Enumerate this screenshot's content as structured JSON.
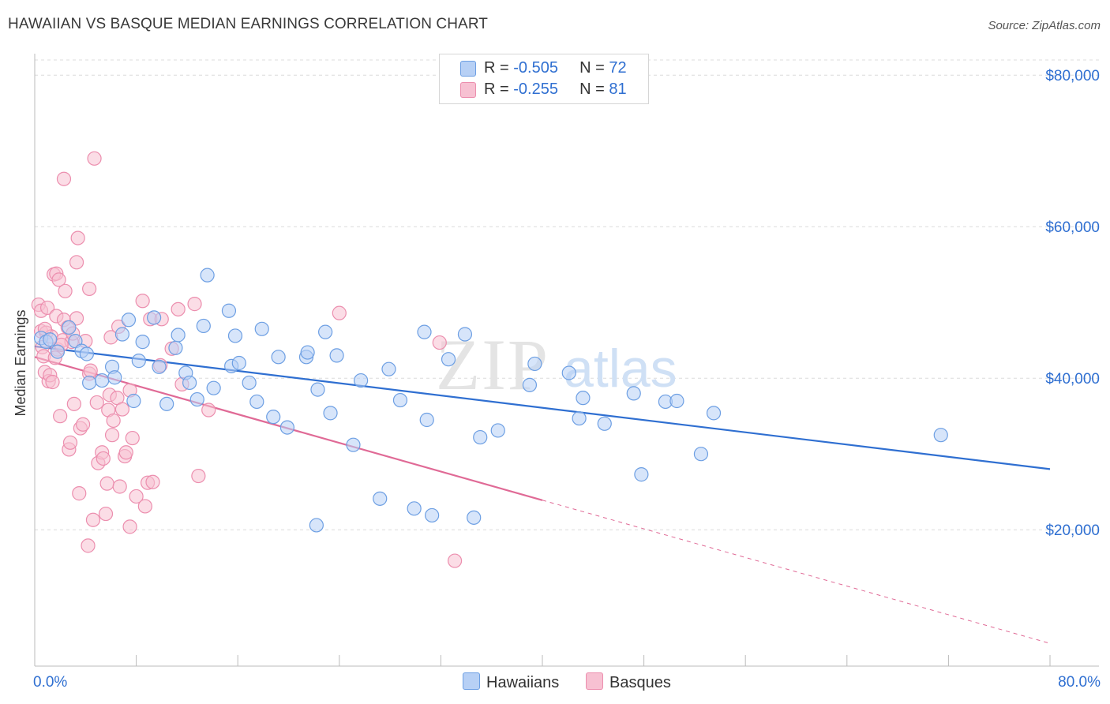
{
  "title": "HAWAIIAN VS BASQUE MEDIAN EARNINGS CORRELATION CHART",
  "source": "Source: ZipAtlas.com",
  "watermark": {
    "zip": "ZIP",
    "atlas": "atlas"
  },
  "legend": {
    "rows": [
      {
        "r_label": "R = ",
        "r_value": "-0.505",
        "n_label": "N = ",
        "n_value": "72"
      },
      {
        "r_label": "R = ",
        "r_value": "-0.255",
        "n_label": "N = ",
        "n_value": "81"
      }
    ]
  },
  "bottom_legend": {
    "hawaiians": "Hawaiians",
    "basques": "Basques"
  },
  "colors": {
    "hawaiians_fill": "#b7d0f5",
    "hawaiians_stroke": "#6d9fe3",
    "hawaiians_line": "#2f6fd1",
    "basques_fill": "#f7c1d2",
    "basques_stroke": "#ec8eae",
    "basques_line": "#e06a96",
    "axis_label": "#2f6fd1"
  },
  "chart_data": {
    "type": "scatter",
    "ylabel": "Median Earnings",
    "xlim": [
      0,
      80
    ],
    "ylim": [
      2000,
      82000
    ],
    "x_tick_labels": [
      "0.0%",
      "80.0%"
    ],
    "y_ticks": [
      20000,
      40000,
      60000,
      80000
    ],
    "y_tick_labels": [
      "$20,000",
      "$40,000",
      "$60,000",
      "$80,000"
    ],
    "grid": true,
    "series": [
      {
        "name": "Hawaiians",
        "points": [
          [
            0.5,
            45300
          ],
          [
            0.9,
            44800
          ],
          [
            1.2,
            45100
          ],
          [
            1.8,
            43500
          ],
          [
            2.7,
            46700
          ],
          [
            3.2,
            44900
          ],
          [
            3.7,
            43600
          ],
          [
            4.1,
            43200
          ],
          [
            4.3,
            39400
          ],
          [
            5.3,
            39700
          ],
          [
            6.1,
            41500
          ],
          [
            6.3,
            40100
          ],
          [
            6.9,
            45800
          ],
          [
            7.4,
            47700
          ],
          [
            7.8,
            37000
          ],
          [
            8.2,
            42300
          ],
          [
            8.5,
            44800
          ],
          [
            9.4,
            48000
          ],
          [
            9.8,
            41500
          ],
          [
            10.4,
            36600
          ],
          [
            11.1,
            44000
          ],
          [
            11.3,
            45700
          ],
          [
            11.9,
            40700
          ],
          [
            12.2,
            39400
          ],
          [
            12.8,
            37200
          ],
          [
            13.3,
            46900
          ],
          [
            13.6,
            53600
          ],
          [
            14.1,
            38700
          ],
          [
            15.3,
            48900
          ],
          [
            15.8,
            45600
          ],
          [
            15.5,
            41600
          ],
          [
            16.1,
            42000
          ],
          [
            16.9,
            39400
          ],
          [
            17.5,
            36900
          ],
          [
            17.9,
            46500
          ],
          [
            18.8,
            34900
          ],
          [
            19.2,
            42800
          ],
          [
            19.9,
            33500
          ],
          [
            21.4,
            42800
          ],
          [
            21.5,
            43400
          ],
          [
            22.3,
            38500
          ],
          [
            22.9,
            46100
          ],
          [
            23.3,
            35400
          ],
          [
            23.8,
            43000
          ],
          [
            25.1,
            31200
          ],
          [
            25.7,
            39700
          ],
          [
            27.2,
            24100
          ],
          [
            27.9,
            41200
          ],
          [
            28.8,
            37100
          ],
          [
            29.9,
            22800
          ],
          [
            30.7,
            46100
          ],
          [
            30.9,
            34500
          ],
          [
            31.3,
            21900
          ],
          [
            32.6,
            42500
          ],
          [
            33.9,
            45800
          ],
          [
            35.1,
            32200
          ],
          [
            36.5,
            33100
          ],
          [
            39.0,
            39100
          ],
          [
            39.4,
            41900
          ],
          [
            42.1,
            40700
          ],
          [
            42.9,
            34700
          ],
          [
            43.2,
            37400
          ],
          [
            44.9,
            34000
          ],
          [
            47.2,
            38000
          ],
          [
            47.8,
            27300
          ],
          [
            49.7,
            36900
          ],
          [
            50.6,
            37000
          ],
          [
            52.5,
            30000
          ],
          [
            53.5,
            35400
          ],
          [
            71.4,
            32500
          ],
          [
            22.2,
            20600
          ],
          [
            34.6,
            21600
          ]
        ]
      },
      {
        "name": "Basques",
        "points": [
          [
            0.3,
            49700
          ],
          [
            0.5,
            48900
          ],
          [
            0.5,
            46200
          ],
          [
            0.6,
            44100
          ],
          [
            0.7,
            42900
          ],
          [
            0.8,
            40800
          ],
          [
            0.9,
            46000
          ],
          [
            1.0,
            49300
          ],
          [
            1.1,
            39600
          ],
          [
            1.2,
            40400
          ],
          [
            1.3,
            45500
          ],
          [
            1.4,
            39500
          ],
          [
            1.5,
            53700
          ],
          [
            1.7,
            53800
          ],
          [
            1.7,
            48200
          ],
          [
            1.8,
            43800
          ],
          [
            1.9,
            53000
          ],
          [
            2.0,
            35000
          ],
          [
            2.2,
            45000
          ],
          [
            2.3,
            47700
          ],
          [
            2.3,
            66300
          ],
          [
            2.4,
            51500
          ],
          [
            2.6,
            46700
          ],
          [
            2.7,
            30600
          ],
          [
            2.8,
            31500
          ],
          [
            2.9,
            44800
          ],
          [
            3.1,
            36600
          ],
          [
            3.3,
            55300
          ],
          [
            3.3,
            47900
          ],
          [
            3.4,
            58500
          ],
          [
            3.5,
            24800
          ],
          [
            3.6,
            33400
          ],
          [
            3.8,
            33900
          ],
          [
            4.0,
            44900
          ],
          [
            4.3,
            51800
          ],
          [
            4.3,
            40600
          ],
          [
            4.4,
            41000
          ],
          [
            4.6,
            21300
          ],
          [
            4.7,
            69000
          ],
          [
            4.9,
            36800
          ],
          [
            5.0,
            28800
          ],
          [
            5.3,
            30200
          ],
          [
            5.4,
            29400
          ],
          [
            5.6,
            22100
          ],
          [
            5.7,
            26100
          ],
          [
            5.8,
            35800
          ],
          [
            5.9,
            37800
          ],
          [
            6.0,
            45400
          ],
          [
            6.1,
            32500
          ],
          [
            6.2,
            34400
          ],
          [
            6.5,
            37400
          ],
          [
            6.6,
            46800
          ],
          [
            6.7,
            25700
          ],
          [
            6.9,
            35900
          ],
          [
            7.1,
            29700
          ],
          [
            7.2,
            30200
          ],
          [
            7.5,
            20400
          ],
          [
            7.7,
            32100
          ],
          [
            8.0,
            24400
          ],
          [
            8.5,
            50200
          ],
          [
            8.7,
            23100
          ],
          [
            8.9,
            26200
          ],
          [
            9.1,
            47800
          ],
          [
            9.3,
            26300
          ],
          [
            10.0,
            47800
          ],
          [
            10.8,
            43900
          ],
          [
            11.3,
            49100
          ],
          [
            12.6,
            49800
          ],
          [
            12.9,
            27100
          ],
          [
            13.7,
            35800
          ],
          [
            24.0,
            48600
          ],
          [
            31.9,
            44700
          ],
          [
            33.1,
            15900
          ],
          [
            0.8,
            46500
          ],
          [
            1.6,
            42700
          ],
          [
            2.1,
            44400
          ],
          [
            3.0,
            45900
          ],
          [
            4.2,
            17900
          ],
          [
            7.5,
            38400
          ],
          [
            9.9,
            41700
          ],
          [
            11.6,
            39200
          ]
        ]
      }
    ],
    "trend_lines": [
      {
        "name": "Hawaiians",
        "x": [
          0,
          80
        ],
        "y": [
          44200,
          28000
        ]
      },
      {
        "name": "Basques",
        "x": [
          0,
          80
        ],
        "y": [
          42800,
          5000
        ],
        "solid_until_x": 40
      }
    ]
  }
}
